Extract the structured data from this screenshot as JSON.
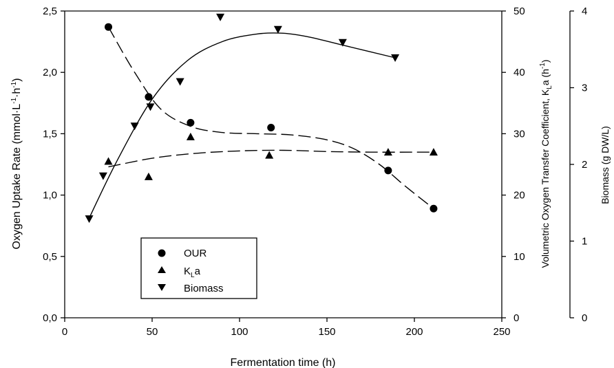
{
  "chart_data": {
    "type": "scatter",
    "xlabel": "Fermentation time (h)",
    "xlim": [
      0,
      250
    ],
    "xticks": [
      0,
      50,
      100,
      150,
      200,
      250
    ],
    "grid": false,
    "legend_placement": "bottom-left",
    "axes": {
      "left": {
        "label": "Oxygen Uptake Rate (mmol·L⁻¹·h⁻¹)",
        "label_main": "Oxygen Uptake Rate (mmol·L",
        "label_sup1": "-1",
        "label_mid": "·h",
        "label_sup2": "-1",
        "label_end": ")",
        "ylim": [
          0,
          2.5
        ],
        "ticks": [
          0,
          0.5,
          1.0,
          1.5,
          2.0,
          2.5
        ],
        "tick_labels": [
          "0,0",
          "0,5",
          "1,0",
          "1,5",
          "2,0",
          "2,5"
        ]
      },
      "right1": {
        "label": "Volumetric Oxygen Transfer Coefficient, K_La (h⁻¹)",
        "label_main": "Volumetric Oxygen Transfer Coefficient, K",
        "label_sub": "L",
        "label_mid": "a (h",
        "label_sup": "-1",
        "label_end": ")",
        "ylim": [
          0,
          50
        ],
        "ticks": [
          0,
          10,
          20,
          30,
          40,
          50
        ],
        "tick_labels": [
          "0",
          "10",
          "20",
          "30",
          "40",
          "50"
        ]
      },
      "right2": {
        "label": "Biomass (g DW/L)",
        "ylim": [
          0,
          4
        ],
        "ticks": [
          0,
          1,
          2,
          3,
          4
        ],
        "tick_labels": [
          "0",
          "1",
          "2",
          "3",
          "4"
        ]
      }
    },
    "series": [
      {
        "name": "OUR",
        "marker": "circle",
        "axis": "left",
        "line_style": "dashed",
        "x": [
          25,
          48,
          72,
          118,
          185,
          211
        ],
        "y": [
          2.37,
          1.8,
          1.59,
          1.55,
          1.2,
          0.89
        ],
        "curve": [
          [
            25,
            2.37
          ],
          [
            40,
            2.0
          ],
          [
            55,
            1.7
          ],
          [
            72,
            1.56
          ],
          [
            90,
            1.51
          ],
          [
            110,
            1.5
          ],
          [
            130,
            1.49
          ],
          [
            150,
            1.45
          ],
          [
            165,
            1.38
          ],
          [
            180,
            1.25
          ],
          [
            195,
            1.07
          ],
          [
            211,
            0.89
          ]
        ]
      },
      {
        "name": "K_La",
        "legend_main": "K",
        "legend_sub": "L",
        "legend_end": "a",
        "marker": "triangle-up",
        "axis": "right1",
        "line_style": "dashed",
        "x": [
          25,
          48,
          72,
          117,
          185,
          211
        ],
        "y": [
          25.5,
          23,
          29.5,
          26.5,
          27,
          27
        ],
        "curve": [
          [
            25,
            24.6
          ],
          [
            50,
            26.0
          ],
          [
            75,
            26.8
          ],
          [
            100,
            27.2
          ],
          [
            125,
            27.3
          ],
          [
            150,
            27.1
          ],
          [
            175,
            27.0
          ],
          [
            211,
            27.0
          ]
        ]
      },
      {
        "name": "Biomass",
        "marker": "triangle-down",
        "axis": "right2",
        "line_style": "solid",
        "x": [
          14,
          22,
          40,
          49,
          66,
          89,
          122,
          159,
          189
        ],
        "y": [
          1.29,
          1.85,
          2.5,
          2.75,
          3.08,
          3.92,
          3.76,
          3.59,
          3.39
        ],
        "curve": [
          [
            14,
            1.3
          ],
          [
            30,
            2.05
          ],
          [
            50,
            2.85
          ],
          [
            70,
            3.35
          ],
          [
            90,
            3.6
          ],
          [
            110,
            3.7
          ],
          [
            125,
            3.71
          ],
          [
            140,
            3.66
          ],
          [
            160,
            3.55
          ],
          [
            189,
            3.39
          ]
        ]
      }
    ]
  }
}
